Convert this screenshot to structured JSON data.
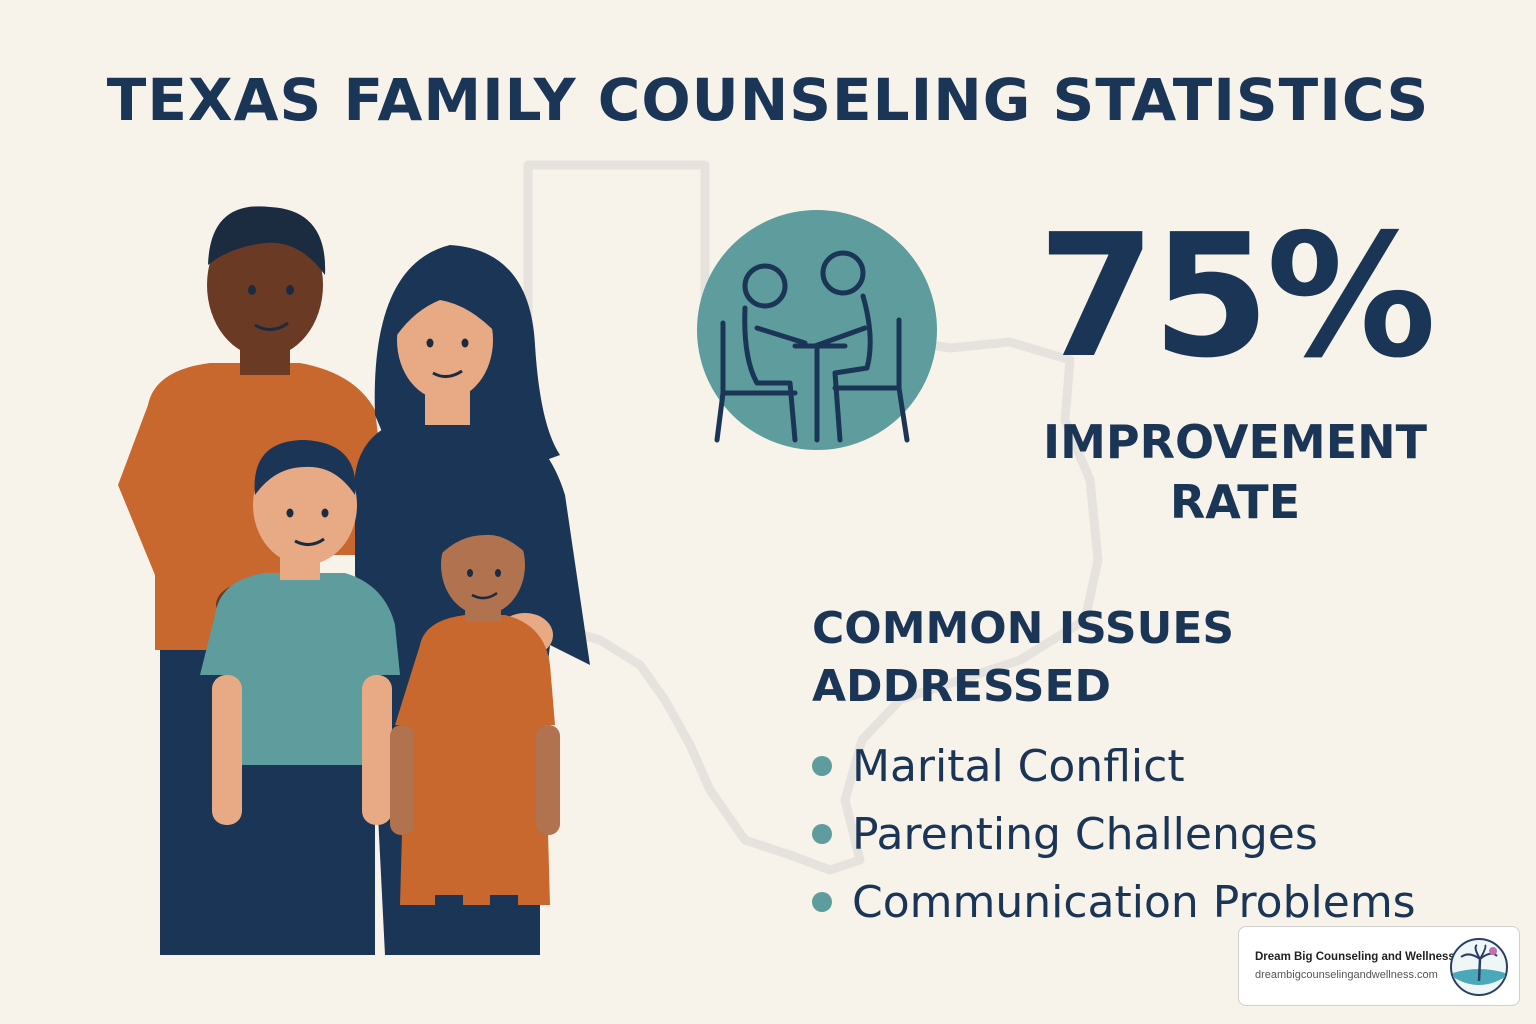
{
  "title": "TEXAS FAMILY COUNSELING STATISTICS",
  "stat": {
    "value": "75%",
    "label_line1": "IMPROVEMENT",
    "label_line2": "RATE"
  },
  "issues": {
    "heading_line1": "COMMON ISSUES",
    "heading_line2": "ADDRESSED",
    "items": [
      "Marital Conflict",
      "Parenting Challenges",
      "Communication Problems"
    ]
  },
  "brand": {
    "name": "Dream Big Counseling and Wellness",
    "url": "dreambigcounselingandwellness.com"
  },
  "colors": {
    "background": "#f8f3ea",
    "navy": "#1b3556",
    "teal": "#5f9c9e",
    "orange": "#c8672e",
    "map_outline": "#e6e3de"
  },
  "icons": [
    "texas-map-outline",
    "family-illustration",
    "counseling-session-icon",
    "brand-logo-palm-icon"
  ]
}
